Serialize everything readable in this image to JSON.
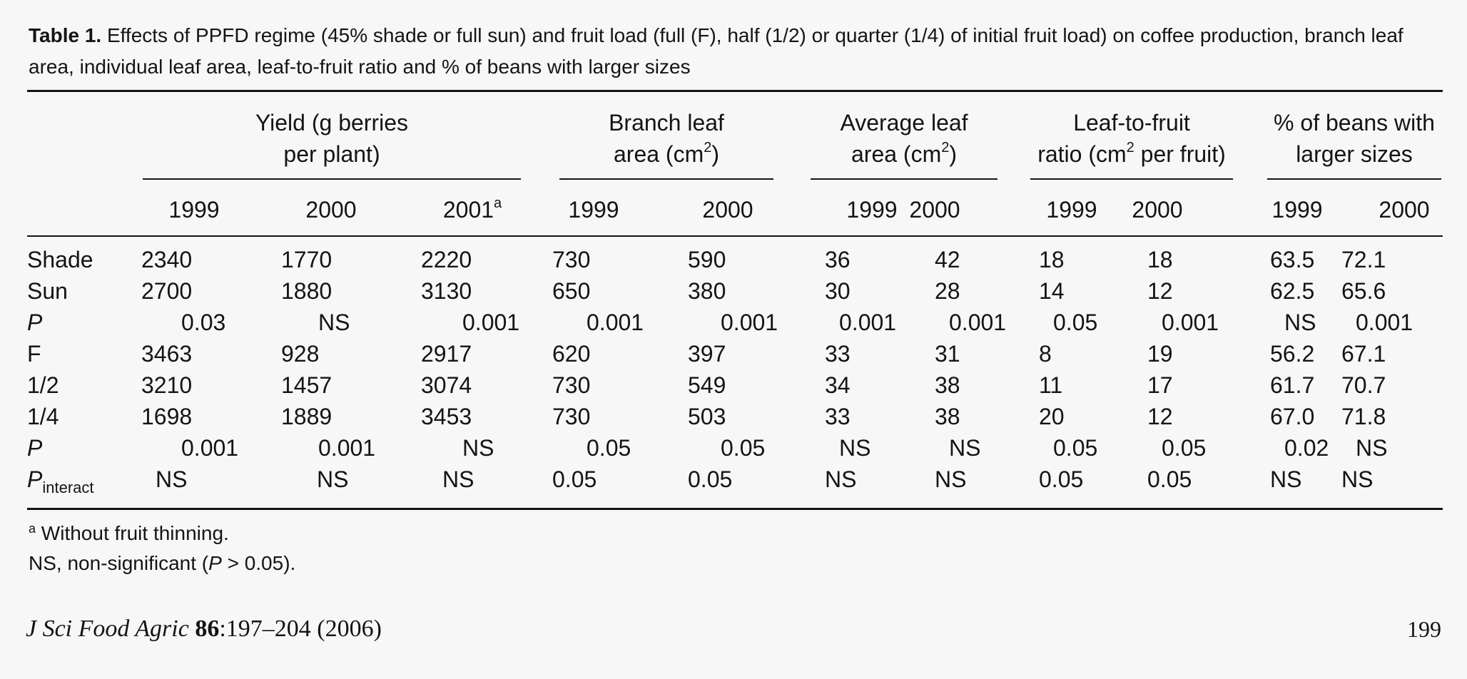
{
  "caption": {
    "label": "Table 1.",
    "text": " Effects of PPFD regime (45% shade or full sun) and fruit load (full (F), half (1/2) or quarter (1/4) of initial fruit load) on coffee production, branch leaf area, individual leaf area, leaf-to-fruit ratio and % of beans with larger sizes"
  },
  "groups": {
    "yield": {
      "line1": "Yield (g berries",
      "line2": "per plant)"
    },
    "branch": {
      "line1": "Branch leaf",
      "line2_pre": "area (cm",
      "sup": "2",
      "line2_post": ")"
    },
    "avgleaf": {
      "line1": "Average leaf",
      "line2_pre": "area (cm",
      "sup": "2",
      "line2_post": ")"
    },
    "ratio": {
      "line1": "Leaf-to-fruit",
      "line2_pre": "ratio (cm",
      "sup": "2",
      "line2_post": " per fruit)"
    },
    "beans": {
      "line1": "% of beans with",
      "line2": "larger sizes"
    }
  },
  "years": [
    "1999",
    "2000",
    "2001",
    "1999",
    "2000",
    "1999",
    "2000",
    "1999",
    "2000",
    "1999",
    "2000"
  ],
  "year_sup": "a",
  "rows": [
    {
      "label": "Shade",
      "cells": [
        "2340",
        "1770",
        "2220",
        "730",
        "590",
        "36",
        "42",
        "18",
        "18",
        "63.5",
        "72.1"
      ]
    },
    {
      "label": "Sun",
      "cells": [
        "2700",
        "1880",
        "3130",
        "650",
        "380",
        "30",
        "28",
        "14",
        "12",
        "62.5",
        "65.6"
      ]
    },
    {
      "label": "P",
      "cells": [
        "0.03",
        "NS",
        "0.001",
        "0.001",
        "0.001",
        "0.001",
        "0.001",
        "0.05",
        "0.001",
        "NS",
        "0.001"
      ]
    },
    {
      "label": "F",
      "cells": [
        "3463",
        "928",
        "2917",
        "620",
        "397",
        "33",
        "31",
        "8",
        "19",
        "56.2",
        "67.1"
      ]
    },
    {
      "label": "1/2",
      "cells": [
        "3210",
        "1457",
        "3074",
        "730",
        "549",
        "34",
        "38",
        "11",
        "17",
        "61.7",
        "70.7"
      ]
    },
    {
      "label": "1/4",
      "cells": [
        "1698",
        "1889",
        "3453",
        "730",
        "503",
        "33",
        "38",
        "20",
        "12",
        "67.0",
        "71.8"
      ]
    },
    {
      "label": "P",
      "cells": [
        "0.001",
        "0.001",
        "NS",
        "0.05",
        "0.05",
        "NS",
        "NS",
        "0.05",
        "0.05",
        "0.02",
        "NS"
      ]
    },
    {
      "label": "P",
      "label_sub": "interact",
      "cells": [
        "NS",
        "NS",
        "NS",
        "0.05",
        "0.05",
        "NS",
        "NS",
        "0.05",
        "0.05",
        "NS",
        "NS"
      ]
    }
  ],
  "footnotes": {
    "a_mark": "a",
    "a_text": " Without fruit thinning.",
    "ns_pre": "NS, non-significant (",
    "ns_p": "P",
    "ns_post": " > 0.05)."
  },
  "journal": {
    "name": "J Sci Food Agric",
    "volume": "86",
    "pages": ":197–204 (2006)"
  },
  "page_number": "199"
}
